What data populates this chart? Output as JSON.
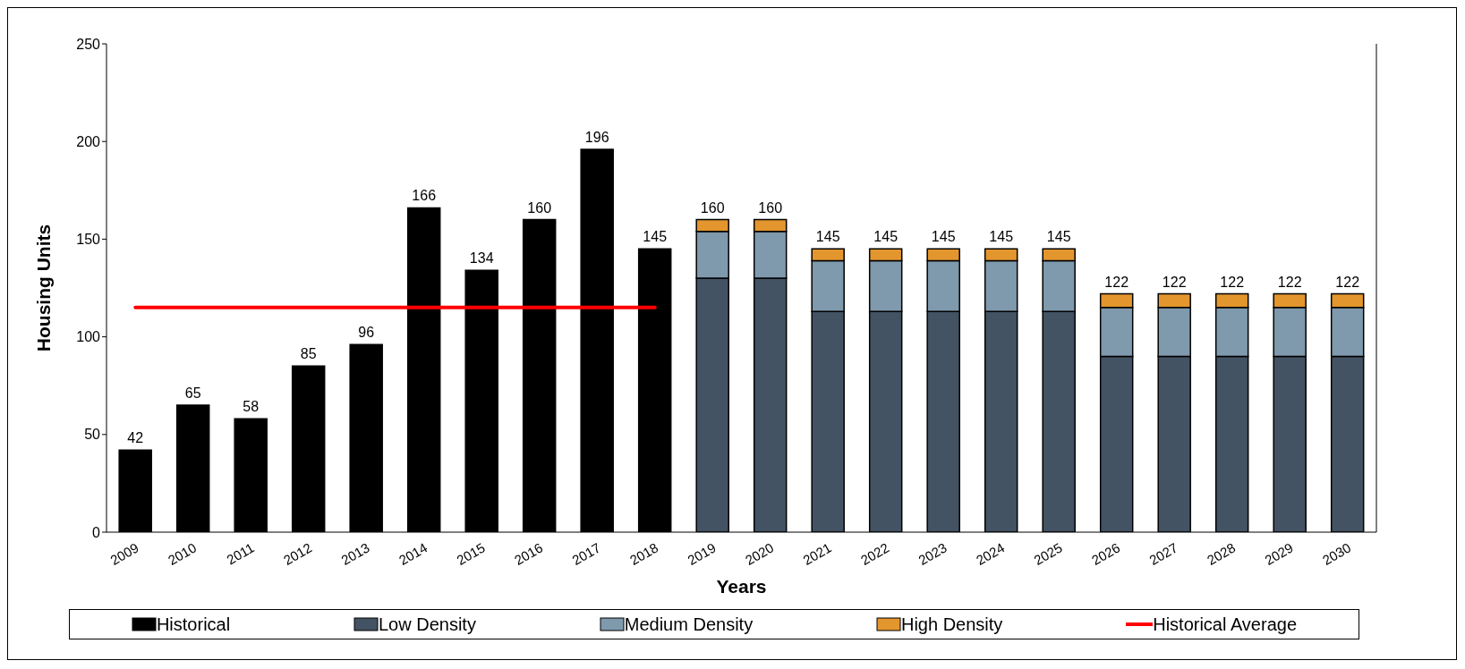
{
  "chart_data": {
    "type": "bar",
    "xlabel": "Years",
    "ylabel": "Housing Units",
    "categories": [
      "2009",
      "2010",
      "2011",
      "2012",
      "2013",
      "2014",
      "2015",
      "2016",
      "2017",
      "2018",
      "2019",
      "2020",
      "2021",
      "2022",
      "2023",
      "2024",
      "2025",
      "2026",
      "2027",
      "2028",
      "2029",
      "2030"
    ],
    "stacked": true,
    "series": [
      {
        "name": "Historical",
        "color": "#000000",
        "values": [
          42,
          65,
          58,
          85,
          96,
          166,
          134,
          160,
          196,
          145,
          null,
          null,
          null,
          null,
          null,
          null,
          null,
          null,
          null,
          null,
          null,
          null
        ]
      },
      {
        "name": "Low Density",
        "color": "#435363",
        "values": [
          null,
          null,
          null,
          null,
          null,
          null,
          null,
          null,
          null,
          null,
          130,
          130,
          113,
          113,
          113,
          113,
          113,
          90,
          90,
          90,
          90,
          90
        ]
      },
      {
        "name": "Medium Density",
        "color": "#7f99ad",
        "values": [
          null,
          null,
          null,
          null,
          null,
          null,
          null,
          null,
          null,
          null,
          24,
          24,
          26,
          26,
          26,
          26,
          26,
          25,
          25,
          25,
          25,
          25
        ]
      },
      {
        "name": "High Density",
        "color": "#e3962e",
        "values": [
          null,
          null,
          null,
          null,
          null,
          null,
          null,
          null,
          null,
          null,
          6,
          6,
          6,
          6,
          6,
          6,
          6,
          7,
          7,
          7,
          7,
          7
        ]
      },
      {
        "name": "Historical Average",
        "type": "line",
        "color": "#ff0000",
        "values": [
          115,
          115,
          115,
          115,
          115,
          115,
          115,
          115,
          115,
          115,
          null,
          null,
          null,
          null,
          null,
          null,
          null,
          null,
          null,
          null,
          null,
          null
        ]
      }
    ],
    "totals": [
      "42",
      "65",
      "58",
      "85",
      "96",
      "166",
      "134",
      "160",
      "196",
      "145",
      "160",
      "160",
      "145",
      "145",
      "145",
      "145",
      "145",
      "122",
      "122",
      "122",
      "122",
      "122"
    ],
    "ylim": [
      0,
      250
    ],
    "yticks": [
      0,
      50,
      100,
      150,
      200,
      250
    ],
    "grid": false,
    "legend": "bottom",
    "marker": "none"
  }
}
